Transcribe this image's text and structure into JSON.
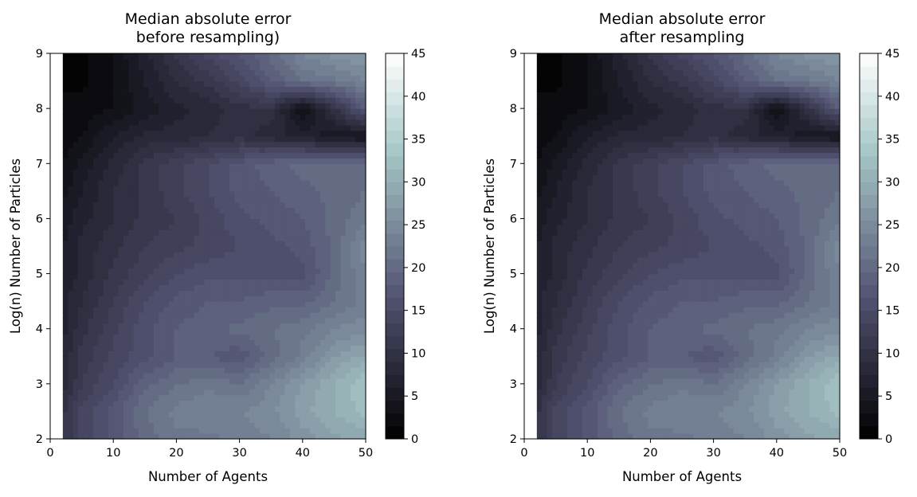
{
  "chart_data": [
    {
      "type": "heatmap",
      "title_lines": [
        "Median absolute error",
        "before resampling)"
      ],
      "xlabel": "Number of Agents",
      "ylabel": "Log(n) Number of Particles",
      "xlim": [
        0,
        50
      ],
      "ylim": [
        2,
        9
      ],
      "x_ticks": [
        "0",
        "10",
        "20",
        "30",
        "40",
        "50"
      ],
      "y_ticks": [
        "2",
        "3",
        "4",
        "5",
        "6",
        "7",
        "8",
        "9"
      ],
      "data_x_start": 2,
      "colormap": "bone",
      "colorbar": {
        "range": [
          0,
          45
        ],
        "ticks": [
          "0",
          "5",
          "10",
          "15",
          "20",
          "25",
          "30",
          "35",
          "40",
          "45"
        ]
      },
      "grid": false,
      "x_samples": [
        2,
        5,
        10,
        15,
        20,
        25,
        30,
        35,
        40,
        45,
        50
      ],
      "y_samples": [
        2,
        2.5,
        3,
        3.5,
        4,
        4.5,
        5,
        5.5,
        6,
        6.5,
        7,
        7.5,
        8,
        8.5,
        9
      ],
      "z": [
        [
          10,
          14,
          17,
          20,
          22,
          22,
          23,
          24,
          26,
          28,
          29
        ],
        [
          10,
          14,
          17,
          21,
          23,
          24,
          24,
          25,
          28,
          30,
          32
        ],
        [
          8,
          12,
          15,
          19,
          21,
          22,
          21,
          24,
          27,
          30,
          33
        ],
        [
          8,
          11,
          14,
          16,
          18,
          18,
          17,
          20,
          23,
          27,
          29
        ],
        [
          7,
          10,
          13,
          16,
          18,
          19,
          20,
          21,
          22,
          24,
          25
        ],
        [
          7,
          9,
          12,
          15,
          17,
          18,
          18,
          19,
          19,
          21,
          23
        ],
        [
          6,
          8,
          11,
          13,
          15,
          16,
          16,
          16,
          16,
          20,
          24
        ],
        [
          6,
          8,
          10,
          12,
          13,
          14,
          15,
          16,
          17,
          20,
          25
        ],
        [
          5,
          7,
          9,
          11,
          12,
          14,
          16,
          17,
          18,
          20,
          22
        ],
        [
          4,
          6,
          9,
          11,
          13,
          15,
          17,
          18,
          19,
          20,
          21
        ],
        [
          3,
          5,
          8,
          11,
          13,
          15,
          17,
          19,
          20,
          21,
          21
        ],
        [
          2,
          3,
          6,
          8,
          8,
          9,
          10,
          8,
          7,
          5,
          4
        ],
        [
          2,
          2,
          3,
          5,
          7,
          8,
          10,
          10,
          3,
          10,
          18
        ],
        [
          1,
          1,
          3,
          6,
          9,
          11,
          14,
          18,
          21,
          22,
          24
        ],
        [
          1,
          1,
          3,
          7,
          11,
          14,
          17,
          20,
          24,
          26,
          27
        ]
      ]
    },
    {
      "type": "heatmap",
      "title_lines": [
        "Median absolute error",
        "after resampling"
      ],
      "xlabel": "Number of Agents",
      "ylabel": "Log(n) Number of Particles",
      "xlim": [
        0,
        50
      ],
      "ylim": [
        2,
        9
      ],
      "x_ticks": [
        "0",
        "10",
        "20",
        "30",
        "40",
        "50"
      ],
      "y_ticks": [
        "2",
        "3",
        "4",
        "5",
        "6",
        "7",
        "8",
        "9"
      ],
      "data_x_start": 2,
      "colormap": "bone",
      "colorbar": {
        "range": [
          0,
          45
        ],
        "ticks": [
          "0",
          "5",
          "10",
          "15",
          "20",
          "25",
          "30",
          "35",
          "40",
          "45"
        ]
      },
      "grid": false,
      "x_samples": [
        2,
        5,
        10,
        15,
        20,
        25,
        30,
        35,
        40,
        45,
        50
      ],
      "y_samples": [
        2,
        2.5,
        3,
        3.5,
        4,
        4.5,
        5,
        5.5,
        6,
        6.5,
        7,
        7.5,
        8,
        8.5,
        9
      ],
      "z": [
        [
          10,
          14,
          17,
          20,
          22,
          22,
          23,
          24,
          26,
          28,
          29
        ],
        [
          10,
          14,
          17,
          21,
          23,
          24,
          24,
          25,
          28,
          30,
          32
        ],
        [
          8,
          12,
          15,
          19,
          21,
          22,
          21,
          24,
          27,
          30,
          33
        ],
        [
          8,
          11,
          14,
          16,
          18,
          18,
          17,
          20,
          23,
          27,
          29
        ],
        [
          7,
          10,
          13,
          16,
          18,
          19,
          20,
          21,
          22,
          24,
          25
        ],
        [
          7,
          9,
          12,
          15,
          17,
          18,
          18,
          19,
          19,
          21,
          23
        ],
        [
          6,
          8,
          11,
          13,
          15,
          16,
          16,
          16,
          16,
          20,
          24
        ],
        [
          6,
          8,
          10,
          12,
          13,
          14,
          15,
          16,
          17,
          20,
          25
        ],
        [
          5,
          7,
          9,
          11,
          12,
          14,
          16,
          17,
          18,
          20,
          22
        ],
        [
          4,
          6,
          9,
          11,
          13,
          15,
          17,
          18,
          19,
          20,
          21
        ],
        [
          3,
          5,
          8,
          11,
          13,
          15,
          17,
          19,
          20,
          21,
          21
        ],
        [
          2,
          3,
          6,
          8,
          8,
          9,
          10,
          8,
          7,
          5,
          4
        ],
        [
          2,
          2,
          3,
          5,
          7,
          8,
          10,
          10,
          3,
          10,
          18
        ],
        [
          1,
          1,
          3,
          6,
          9,
          11,
          14,
          18,
          21,
          22,
          24
        ],
        [
          1,
          1,
          3,
          7,
          11,
          14,
          17,
          20,
          24,
          26,
          27
        ]
      ]
    }
  ]
}
